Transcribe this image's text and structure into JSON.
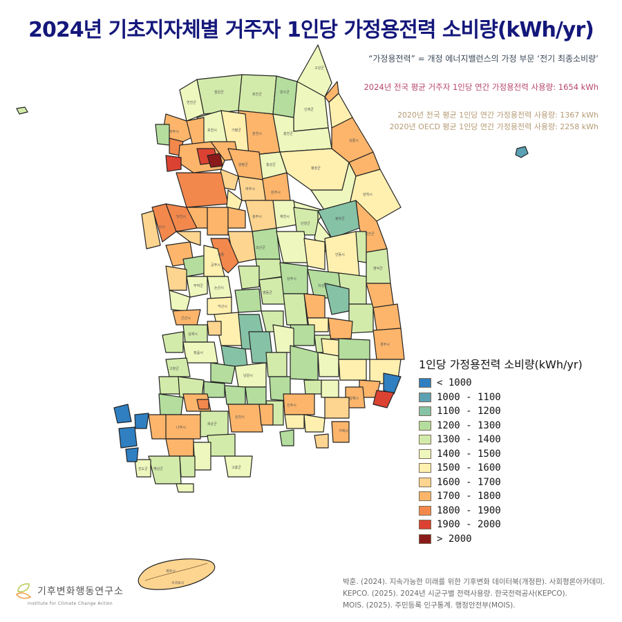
{
  "header": {
    "title": "2024년 기초지자체별 거주자 1인당 가정용전력 소비량(kWh/yr)"
  },
  "notes": {
    "definition": "“가정용전력” = 개정 에너지밸런스의 가정 부문 ‘전기 최종소비량’",
    "avg_2024": "2024년 전국 평균 거주자 1인당 연간 가정용전력 사용량: 1654 kWh",
    "avg_2020": "2020년 전국 평균 1인당 연간 가정용전력 사용량: 1367 kWh",
    "oecd_2020": "2020년 OECD 평균 1인당 연간 가정용전력 사용량: 2258 kWh"
  },
  "legend": {
    "title": "1인당 가정용전력 소비량(kWh/yr)",
    "items": [
      {
        "label": "< 1000",
        "color": "#2f7fc1"
      },
      {
        "label": "1000 - 1100",
        "color": "#5ba1b4"
      },
      {
        "label": "1100 - 1200",
        "color": "#86c2a6"
      },
      {
        "label": "1200 - 1300",
        "color": "#b4dd9e"
      },
      {
        "label": "1300 - 1400",
        "color": "#d3ebaa"
      },
      {
        "label": "1400 - 1500",
        "color": "#eef7bd"
      },
      {
        "label": "1500 - 1600",
        "color": "#fff0b0"
      },
      {
        "label": "1600 - 1700",
        "color": "#fdd590"
      },
      {
        "label": "1700 - 1800",
        "color": "#fcb56b"
      },
      {
        "label": "1800 - 1900",
        "color": "#f3884c"
      },
      {
        "label": "1900 - 2000",
        "color": "#dc4232"
      },
      {
        "label": "> 2000",
        "color": "#8b1a1a"
      }
    ]
  },
  "map": {
    "national_avg_2024_kwh": 1654,
    "region_labels": [
      "철원군",
      "화천군",
      "양구군",
      "인제군",
      "고성군",
      "속초시",
      "양양군",
      "연천군",
      "포천시",
      "파주시",
      "양주시",
      "동두천시",
      "가평군",
      "춘천시",
      "홍천군",
      "강릉시",
      "평창군",
      "횡성군",
      "원주시",
      "정선군",
      "동해시",
      "삼척시",
      "태백시",
      "영월군",
      "강화군",
      "김포시",
      "남양주시",
      "의정부시",
      "양평군",
      "광주시",
      "여주시",
      "이천시",
      "옹진군",
      "충주시",
      "제천시",
      "단양군",
      "봉화군",
      "울진군",
      "영주시",
      "예천군",
      "문경시",
      "안동시",
      "영양군",
      "영덕군",
      "상주시",
      "의성군",
      "청송군",
      "군위군",
      "구미시",
      "김천시",
      "칠곡군",
      "영천시",
      "포항시북구",
      "포항시남구",
      "경주시",
      "당진시",
      "서산시",
      "태안군",
      "아산시",
      "천안시서북구",
      "천안시동남구",
      "진천군",
      "음성군",
      "괴산군",
      "청주시청원구",
      "청주시상당구",
      "세종특별자치시",
      "홍성군",
      "예산군",
      "청양군",
      "공주시",
      "보령시",
      "부여군",
      "논산시",
      "계룡시",
      "금산군",
      "옥천군",
      "보은군",
      "영동군",
      "서천군",
      "익산시",
      "군산시",
      "완주군",
      "전주시덕진구",
      "전주시완산구",
      "김제시",
      "부안군",
      "정읍시",
      "고창군",
      "진안군",
      "무주군",
      "장수군",
      "임실군",
      "순창군",
      "남원시",
      "거창군",
      "함양군",
      "산청군",
      "영광군",
      "장성군",
      "담양군",
      "곡성군",
      "구례군",
      "광양시",
      "하동군",
      "순천시",
      "화순군",
      "나주시",
      "함평군",
      "무안군",
      "신안군",
      "목포시",
      "영암군",
      "강진군",
      "장흥군",
      "보성군",
      "고흥군",
      "해남군",
      "완도군",
      "진도군",
      "성주군",
      "고령군",
      "달성군",
      "창녕군",
      "합천군",
      "의령군",
      "함안군",
      "밀양시",
      "양산시",
      "울주군",
      "김해시",
      "창원시",
      "진주시",
      "사천시",
      "고성군",
      "남해군",
      "거제시",
      "통영시",
      "부산",
      "울산",
      "제주시",
      "서귀포시",
      "울릉군"
    ],
    "island_ulleung_class": "1000 - 1100",
    "jeju_class": "1600 - 1700"
  },
  "references": [
    "박훈. (2024). 지속가능한 미래를 위한 기후변화 데이터북(개정판). 사회평론아카데미.",
    "KEPCO. (2025). 2024년 시군구별 전력사용량. 한국전력공사(KEPCO).",
    "MOIS. (2025). 주민등록 인구통계. 행정안전부(MOIS)."
  ],
  "logo": {
    "name": "기후변화행동연구소",
    "subtitle": "Institute for Climate Change Action"
  }
}
